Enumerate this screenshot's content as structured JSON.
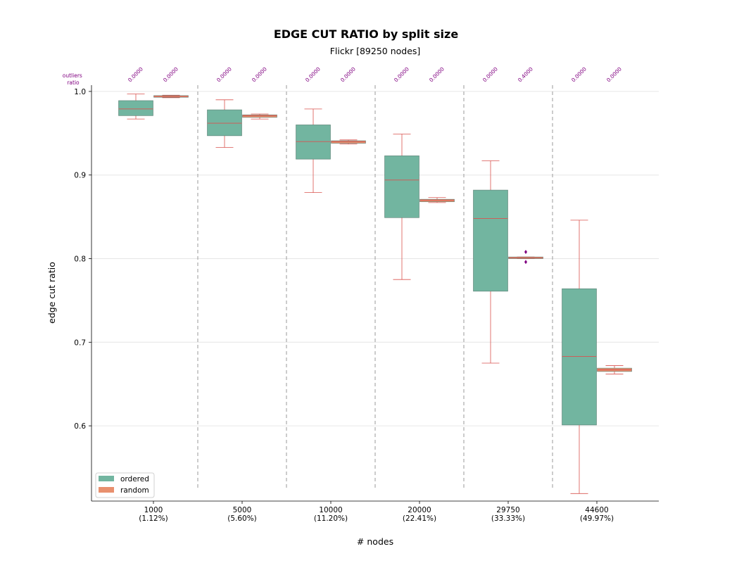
{
  "chart_data": {
    "type": "box",
    "title": "EDGE CUT RATIO by split size",
    "subtitle": "Flickr [89250 nodes]",
    "xlabel": "# nodes",
    "ylabel": "edge cut ratio",
    "ylim": [
      0.51,
      1.0075
    ],
    "yticks": [
      0.6,
      0.7,
      0.8,
      0.9,
      1.0
    ],
    "ytick_labels": [
      "0.6",
      "0.7",
      "0.8",
      "0.9",
      "1.0"
    ],
    "grid": "horizontal",
    "outliers_ratio_label": [
      "outliers",
      "ratio"
    ],
    "categories": [
      {
        "value": "1000",
        "pct": "(1.12%)"
      },
      {
        "value": "5000",
        "pct": "(5.60%)"
      },
      {
        "value": "10000",
        "pct": "(11.20%)"
      },
      {
        "value": "20000",
        "pct": "(22.41%)"
      },
      {
        "value": "29750",
        "pct": "(33.33%)"
      },
      {
        "value": "44600",
        "pct": "(49.97%)"
      }
    ],
    "legend": {
      "position": "lower-left"
    },
    "series": [
      {
        "name": "ordered",
        "color": "#72B5A0",
        "boxes": [
          {
            "wlow": 0.967,
            "q1": 0.971,
            "median": 0.979,
            "q3": 0.989,
            "whigh": 0.997,
            "outliers": [],
            "outlier_ratio": "0.0000"
          },
          {
            "wlow": 0.933,
            "q1": 0.947,
            "median": 0.962,
            "q3": 0.978,
            "whigh": 0.99,
            "outliers": [],
            "outlier_ratio": "0.0000"
          },
          {
            "wlow": 0.879,
            "q1": 0.919,
            "median": 0.94,
            "q3": 0.96,
            "whigh": 0.979,
            "outliers": [],
            "outlier_ratio": "0.0000"
          },
          {
            "wlow": 0.775,
            "q1": 0.849,
            "median": 0.894,
            "q3": 0.923,
            "whigh": 0.949,
            "outliers": [],
            "outlier_ratio": "0.0000"
          },
          {
            "wlow": 0.675,
            "q1": 0.761,
            "median": 0.848,
            "q3": 0.882,
            "whigh": 0.917,
            "outliers": [],
            "outlier_ratio": "0.0000"
          },
          {
            "wlow": 0.519,
            "q1": 0.601,
            "median": 0.683,
            "q3": 0.764,
            "whigh": 0.846,
            "outliers": [],
            "outlier_ratio": "0.0000"
          }
        ]
      },
      {
        "name": "random",
        "color": "#E8906E",
        "boxes": [
          {
            "wlow": 0.9925,
            "q1": 0.993,
            "median": 0.994,
            "q3": 0.995,
            "whigh": 0.9955,
            "outliers": [],
            "outlier_ratio": "0.0000"
          },
          {
            "wlow": 0.967,
            "q1": 0.969,
            "median": 0.971,
            "q3": 0.972,
            "whigh": 0.973,
            "outliers": [],
            "outlier_ratio": "0.0000"
          },
          {
            "wlow": 0.937,
            "q1": 0.938,
            "median": 0.94,
            "q3": 0.941,
            "whigh": 0.942,
            "outliers": [],
            "outlier_ratio": "0.0000"
          },
          {
            "wlow": 0.867,
            "q1": 0.868,
            "median": 0.87,
            "q3": 0.871,
            "whigh": 0.873,
            "outliers": [],
            "outlier_ratio": "0.0000"
          },
          {
            "wlow": 0.8,
            "q1": 0.8,
            "median": 0.801,
            "q3": 0.802,
            "whigh": 0.802,
            "outliers": [
              0.808,
              0.796
            ],
            "outlier_ratio": "0.4000"
          },
          {
            "wlow": 0.662,
            "q1": 0.665,
            "median": 0.667,
            "q3": 0.669,
            "whigh": 0.672,
            "outliers": [],
            "outlier_ratio": "0.0000"
          }
        ]
      }
    ]
  }
}
